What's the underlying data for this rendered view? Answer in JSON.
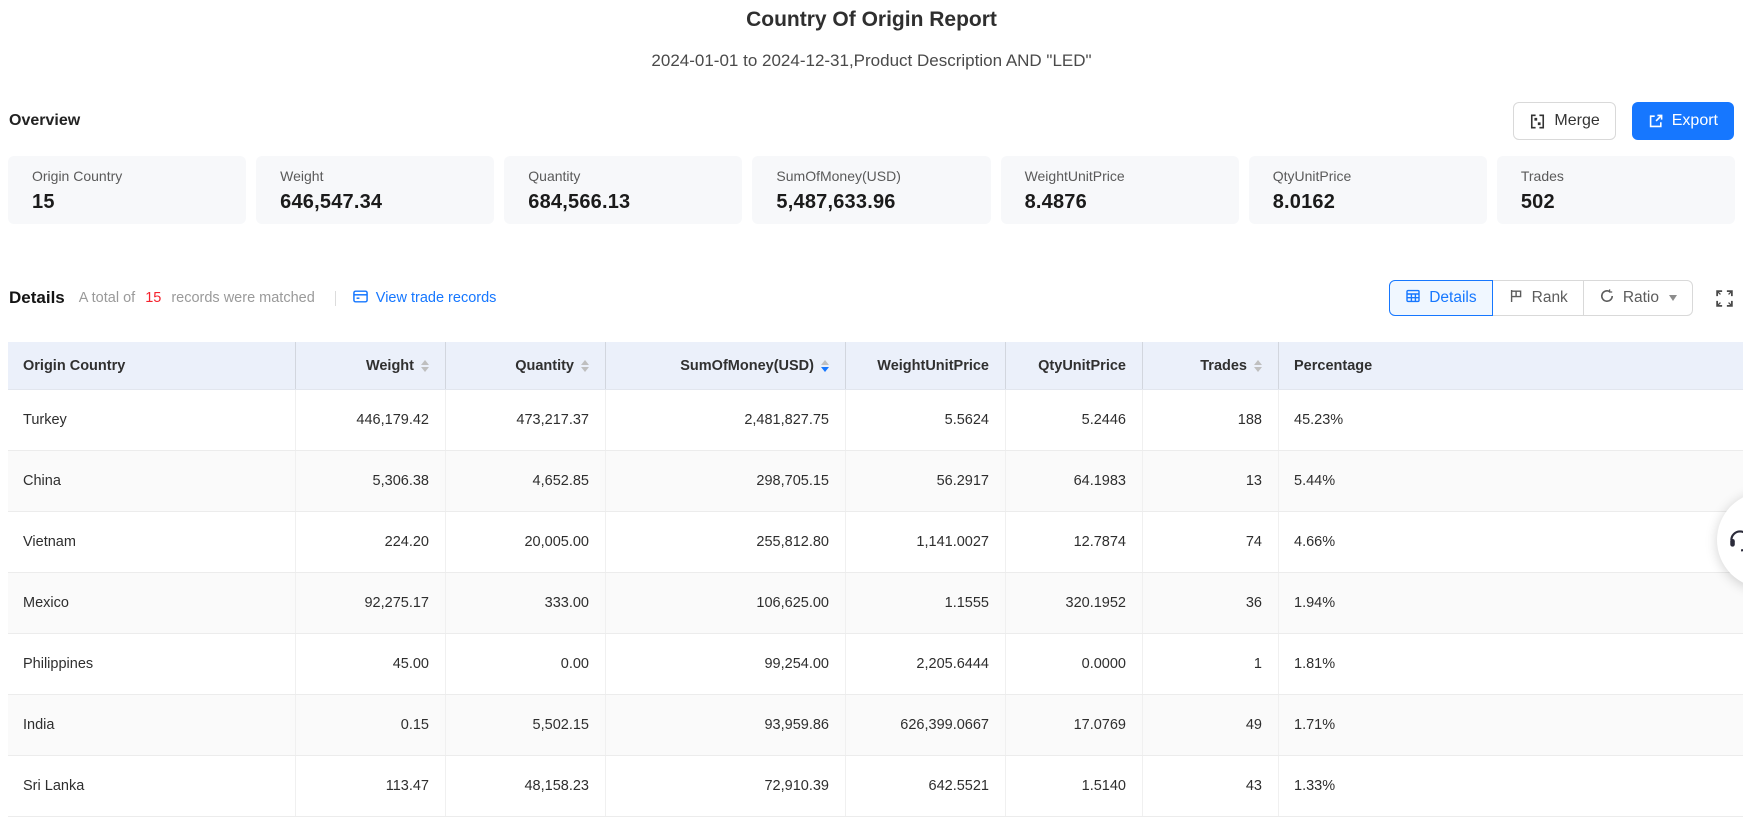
{
  "report": {
    "title": "Country Of Origin Report",
    "subtitle": "2024-01-01 to 2024-12-31,Product Description AND \"LED\""
  },
  "overview": {
    "heading": "Overview",
    "merge_label": "Merge",
    "export_label": "Export",
    "cards": [
      {
        "label": "Origin Country",
        "value": "15"
      },
      {
        "label": "Weight",
        "value": "646,547.34"
      },
      {
        "label": "Quantity",
        "value": "684,566.13"
      },
      {
        "label": "SumOfMoney(USD)",
        "value": "5,487,633.96"
      },
      {
        "label": "WeightUnitPrice",
        "value": "8.4876"
      },
      {
        "label": "QtyUnitPrice",
        "value": "8.0162"
      },
      {
        "label": "Trades",
        "value": "502"
      }
    ]
  },
  "details": {
    "heading": "Details",
    "summary": {
      "prefix": "A total of",
      "count": "15",
      "suffix": "records were matched"
    },
    "view_link": "View trade records",
    "tabs": [
      {
        "label": "Details",
        "icon": "table-icon",
        "active": true
      },
      {
        "label": "Rank",
        "icon": "rank-icon",
        "active": false
      },
      {
        "label": "Ratio",
        "icon": "ratio-icon",
        "active": false,
        "dropdown": true
      }
    ],
    "fullscreen_icon": "fullscreen-icon"
  },
  "table": {
    "columns": [
      {
        "key": "origin_country",
        "label": "Origin Country",
        "align": "left",
        "sortable": false,
        "sort": null
      },
      {
        "key": "weight",
        "label": "Weight",
        "align": "right",
        "sortable": true,
        "sort": null
      },
      {
        "key": "quantity",
        "label": "Quantity",
        "align": "right",
        "sortable": true,
        "sort": null
      },
      {
        "key": "sum_of_money_usd",
        "label": "SumOfMoney(USD)",
        "align": "right",
        "sortable": true,
        "sort": "desc"
      },
      {
        "key": "weight_unit_price",
        "label": "WeightUnitPrice",
        "align": "right",
        "sortable": false,
        "sort": null
      },
      {
        "key": "qty_unit_price",
        "label": "QtyUnitPrice",
        "align": "right",
        "sortable": false,
        "sort": null
      },
      {
        "key": "trades",
        "label": "Trades",
        "align": "right",
        "sortable": true,
        "sort": null
      },
      {
        "key": "percentage",
        "label": "Percentage",
        "align": "left",
        "sortable": false,
        "sort": null
      }
    ],
    "rows": [
      [
        "Turkey",
        "446,179.42",
        "473,217.37",
        "2,481,827.75",
        "5.5624",
        "5.2446",
        "188",
        "45.23%"
      ],
      [
        "China",
        "5,306.38",
        "4,652.85",
        "298,705.15",
        "56.2917",
        "64.1983",
        "13",
        "5.44%"
      ],
      [
        "Vietnam",
        "224.20",
        "20,005.00",
        "255,812.80",
        "1,141.0027",
        "12.7874",
        "74",
        "4.66%"
      ],
      [
        "Mexico",
        "92,275.17",
        "333.00",
        "106,625.00",
        "1.1555",
        "320.1952",
        "36",
        "1.94%"
      ],
      [
        "Philippines",
        "45.00",
        "0.00",
        "99,254.00",
        "2,205.6444",
        "0.0000",
        "1",
        "1.81%"
      ],
      [
        "India",
        "0.15",
        "5,502.15",
        "93,959.86",
        "626,399.0667",
        "17.0769",
        "49",
        "1.71%"
      ],
      [
        "Sri Lanka",
        "113.47",
        "48,158.23",
        "72,910.39",
        "642.5521",
        "1.5140",
        "43",
        "1.33%"
      ]
    ]
  },
  "colors": {
    "accent": "#1677ff",
    "count_red": "#f5222d",
    "table_header_bg": "#ebf0fa"
  }
}
